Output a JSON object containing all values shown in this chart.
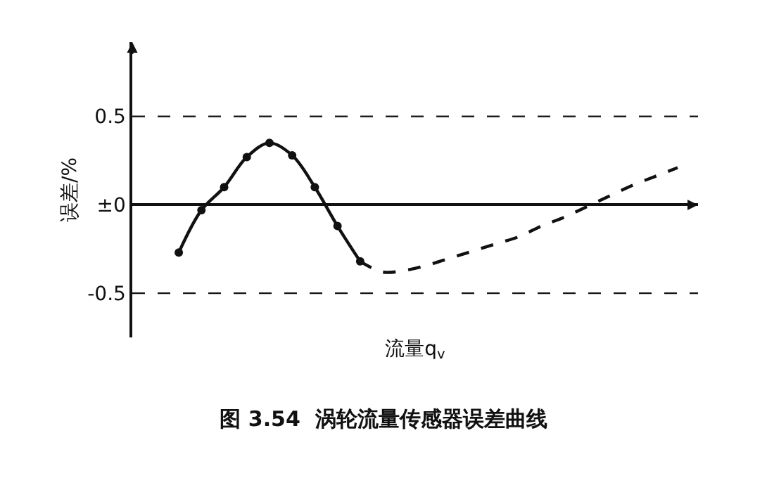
{
  "chart_data": {
    "type": "line",
    "title": "图 3.54  涡轮流量传感器误差曲线",
    "xlabel": "流量q$_{v}$",
    "ylabel": "误差/%",
    "categories": [
      null,
      null,
      null,
      null,
      null,
      null,
      null,
      null,
      null,
      null,
      null,
      null,
      null,
      null,
      null,
      null,
      null,
      null,
      null,
      null,
      null,
      null,
      null
    ],
    "series": [
      {
        "color": "#111111",
        "marker": "circle",
        "line_style": "solid",
        "values": [
          -0.27,
          -0.03,
          0.1,
          0.27,
          0.35,
          0.28,
          0.1,
          -0.12,
          -0.32,
          null,
          null,
          null,
          null,
          null,
          null,
          null,
          null,
          null,
          null,
          null,
          null,
          null,
          null
        ]
      },
      {
        "color": "#111111",
        "marker": "none",
        "line_style": "dashed",
        "values": [
          null,
          null,
          null,
          null,
          null,
          null,
          null,
          null,
          -0.32,
          -0.38,
          -0.37,
          -0.34,
          -0.3,
          -0.26,
          -0.22,
          -0.18,
          -0.12,
          -0.07,
          -0.01,
          0.05,
          0.11,
          0.16,
          0.21
        ]
      }
    ],
    "ylim": [
      -0.75,
      0.92
    ],
    "yticks": [
      0.5,
      {
        "value": 0,
        "label": "±0"
      },
      -0.5
    ],
    "ref_lines": [
      {
        "axis": "y",
        "value": 0.5,
        "line_style": "dashed",
        "color": "#111111"
      },
      {
        "axis": "y",
        "value": -0.5,
        "line_style": "dashed",
        "color": "#111111"
      }
    ],
    "tick_labels": "y"
  }
}
